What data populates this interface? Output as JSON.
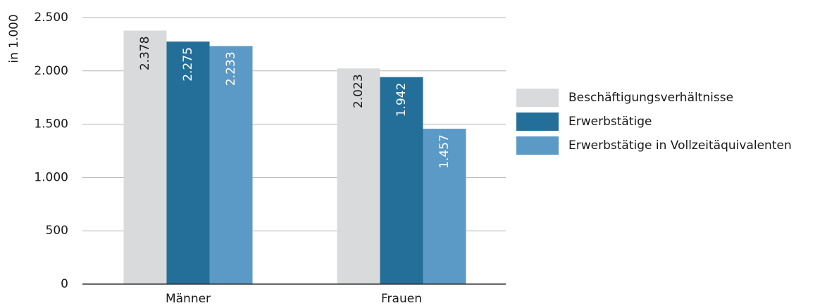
{
  "chart_data": {
    "type": "bar",
    "y_axis_label": "in 1.000",
    "categories": [
      "Männer",
      "Frauen"
    ],
    "series": [
      {
        "name": "Beschäftigungsverhältnisse",
        "color": "#d9dadb",
        "values": [
          2378,
          2023
        ],
        "value_labels": [
          "2.378",
          "2.023"
        ]
      },
      {
        "name": "Erwerbstätige",
        "color": "#236f9a",
        "values": [
          2275,
          1942
        ],
        "value_labels": [
          "2.275",
          "1.942"
        ]
      },
      {
        "name": "Erwerbstätige in Vollzeitäquivalenten",
        "color": "#5b9ac6",
        "values": [
          2233,
          1457
        ],
        "value_labels": [
          "2.233",
          "1.457"
        ]
      }
    ],
    "ylim": [
      0,
      2500
    ],
    "yticks": [
      0,
      500,
      {
        "value": 1000,
        "label": "1.000"
      },
      {
        "value": 1500,
        "label": "1.500"
      },
      {
        "value": 2000,
        "label": "2.000"
      },
      {
        "value": 2500,
        "label": "2.500"
      }
    ],
    "grid": true,
    "legend": "right"
  }
}
